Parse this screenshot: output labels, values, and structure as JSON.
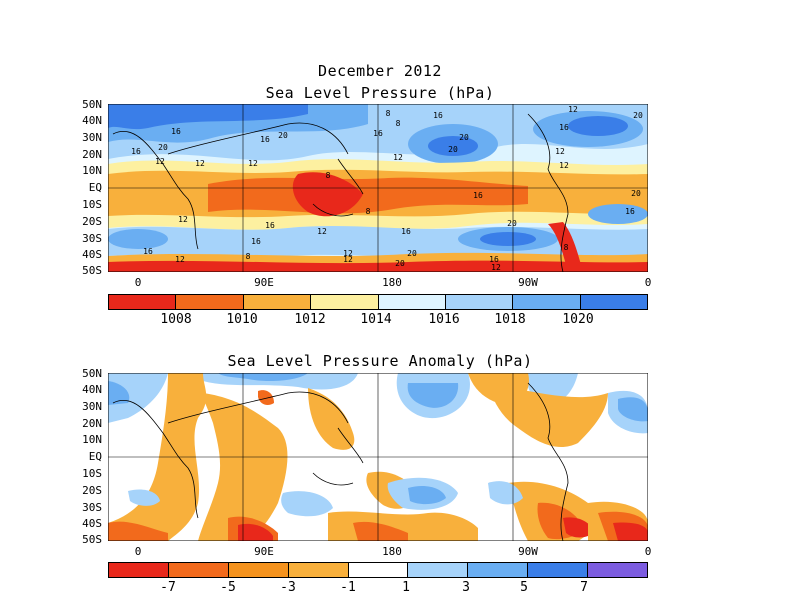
{
  "top": {
    "title_line1": "December 2012",
    "title_line2": "Sea Level Pressure (hPa)",
    "lat_labels": [
      "50N",
      "40N",
      "30N",
      "20N",
      "10N",
      "EQ",
      "10S",
      "20S",
      "30S",
      "40S",
      "50S"
    ],
    "lon_labels": [
      "0",
      "90E",
      "180",
      "90W",
      "0"
    ],
    "contour_labels": [
      "16",
      "20",
      "16",
      "12",
      "8",
      "20",
      "16",
      "12",
      "8",
      "16",
      "20",
      "16",
      "12",
      "12",
      "16",
      "20",
      "12",
      "12",
      "8",
      "16",
      "20",
      "16",
      "20",
      "12",
      "16",
      "12",
      "8",
      "16",
      "12",
      "8",
      "16",
      "20",
      "16",
      "12",
      "20",
      "16",
      "20",
      "12",
      "12",
      "8",
      "12"
    ],
    "colorbar": {
      "labels": [
        "1008",
        "1010",
        "1012",
        "1014",
        "1016",
        "1018",
        "1020"
      ],
      "colors": [
        "#e8281b",
        "#f26a1c",
        "#f8b03c",
        "#fdf0a0",
        "#def4ff",
        "#a6d3fa",
        "#6aaef2",
        "#3a7ee8"
      ]
    },
    "zone_colors": {
      "low": "#e8281b",
      "low2": "#f26a1c",
      "mid_low": "#f8b03c",
      "mid": "#fdf0a0",
      "neutral": "#def4ff",
      "high1": "#a6d3fa",
      "high2": "#6aaef2",
      "high3": "#3a7ee8"
    }
  },
  "bottom": {
    "title": "Sea Level Pressure Anomaly (hPa)",
    "lat_labels": [
      "50N",
      "40N",
      "30N",
      "20N",
      "10N",
      "EQ",
      "10S",
      "20S",
      "30S",
      "40S",
      "50S"
    ],
    "lon_labels": [
      "0",
      "90E",
      "180",
      "90W",
      "0"
    ],
    "colorbar": {
      "labels": [
        "-7",
        "-5",
        "-3",
        "-1",
        "1",
        "3",
        "5",
        "7"
      ],
      "colors": [
        "#e8281b",
        "#f26a1c",
        "#f5931e",
        "#f8b03c",
        "#ffffff",
        "#a6d3fa",
        "#6aaef2",
        "#3a7ee8",
        "#7c5ce0"
      ]
    }
  }
}
